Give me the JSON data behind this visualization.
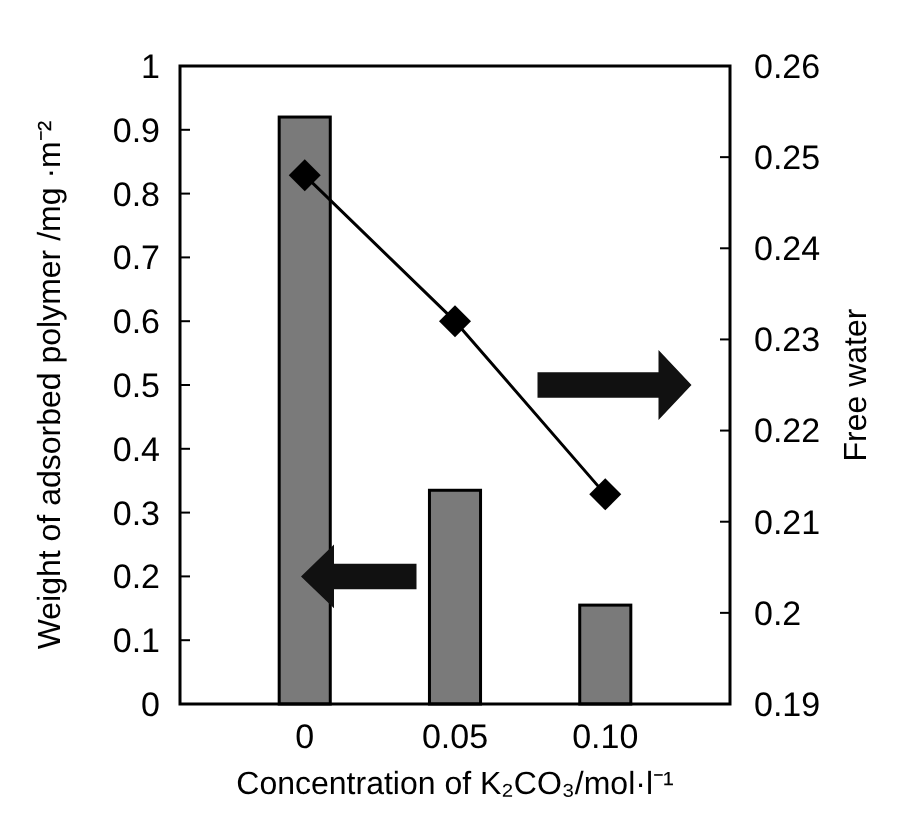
{
  "chart_data": {
    "type": "bar",
    "xlabel": "Concentration of K₂CO₃/mol·l⁻¹",
    "ylabel": "Weight of adsorbed polymer /mg ·m⁻²",
    "y2label": "Free water",
    "categories": [
      "0",
      "0.05",
      "0.10"
    ],
    "series": [
      {
        "color": "#7a7a7a",
        "values": [
          0.92,
          0.335,
          0.155
        ]
      },
      {
        "type": "line",
        "axis": "y2",
        "color": "#000000",
        "values": [
          0.248,
          0.232,
          0.213
        ]
      }
    ],
    "ylim": [
      0,
      1
    ],
    "yticks": [
      0,
      0.1,
      0.2,
      0.3,
      0.4,
      0.5,
      0.6,
      0.7,
      0.8,
      0.9,
      1
    ],
    "y2lim": [
      0.19,
      0.26
    ],
    "y2ticks": [
      0.19,
      0.2,
      0.21,
      0.22,
      0.23,
      0.24,
      0.25,
      0.26
    ],
    "marker": "diamond",
    "line_style": "solid",
    "grid": false
  }
}
